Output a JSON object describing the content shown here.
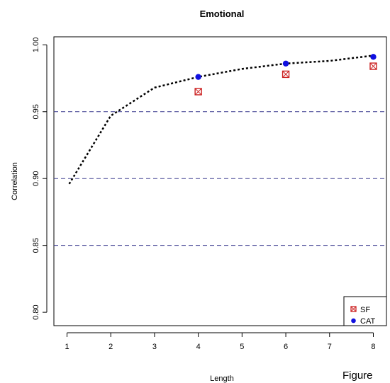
{
  "chart_data": {
    "type": "scatter",
    "title": "Emotional",
    "xlabel": "Length",
    "ylabel": "Correlation",
    "xlim": [
      0.7,
      8.3
    ],
    "ylim": [
      0.79,
      1.006
    ],
    "x_ticks": [
      1,
      2,
      3,
      4,
      5,
      6,
      7,
      8
    ],
    "y_ticks": [
      0.8,
      0.85,
      0.9,
      0.95,
      1.0
    ],
    "y_tick_labels": [
      "0.80",
      "0.85",
      "0.90",
      "0.95",
      "1.00"
    ],
    "reference_lines": [
      0.85,
      0.9,
      0.95
    ],
    "reference_line_color": "#3b3b8f",
    "dotted_curve": {
      "x": [
        1.05,
        2.0,
        3.0,
        4.0,
        5.0,
        6.0,
        7.0,
        8.0
      ],
      "y": [
        0.896,
        0.947,
        0.968,
        0.976,
        0.982,
        0.986,
        0.988,
        0.992
      ]
    },
    "series": [
      {
        "name": "SF",
        "marker": "boxed-x",
        "color": "#cc2222",
        "x": [
          4,
          6,
          8
        ],
        "y": [
          0.965,
          0.978,
          0.984
        ]
      },
      {
        "name": "CAT",
        "marker": "dot",
        "color": "#1010e0",
        "x": [
          4,
          6,
          8
        ],
        "y": [
          0.976,
          0.986,
          0.991
        ]
      }
    ],
    "legend_position": "bottom-right",
    "grid": false
  },
  "caption": "Figure"
}
